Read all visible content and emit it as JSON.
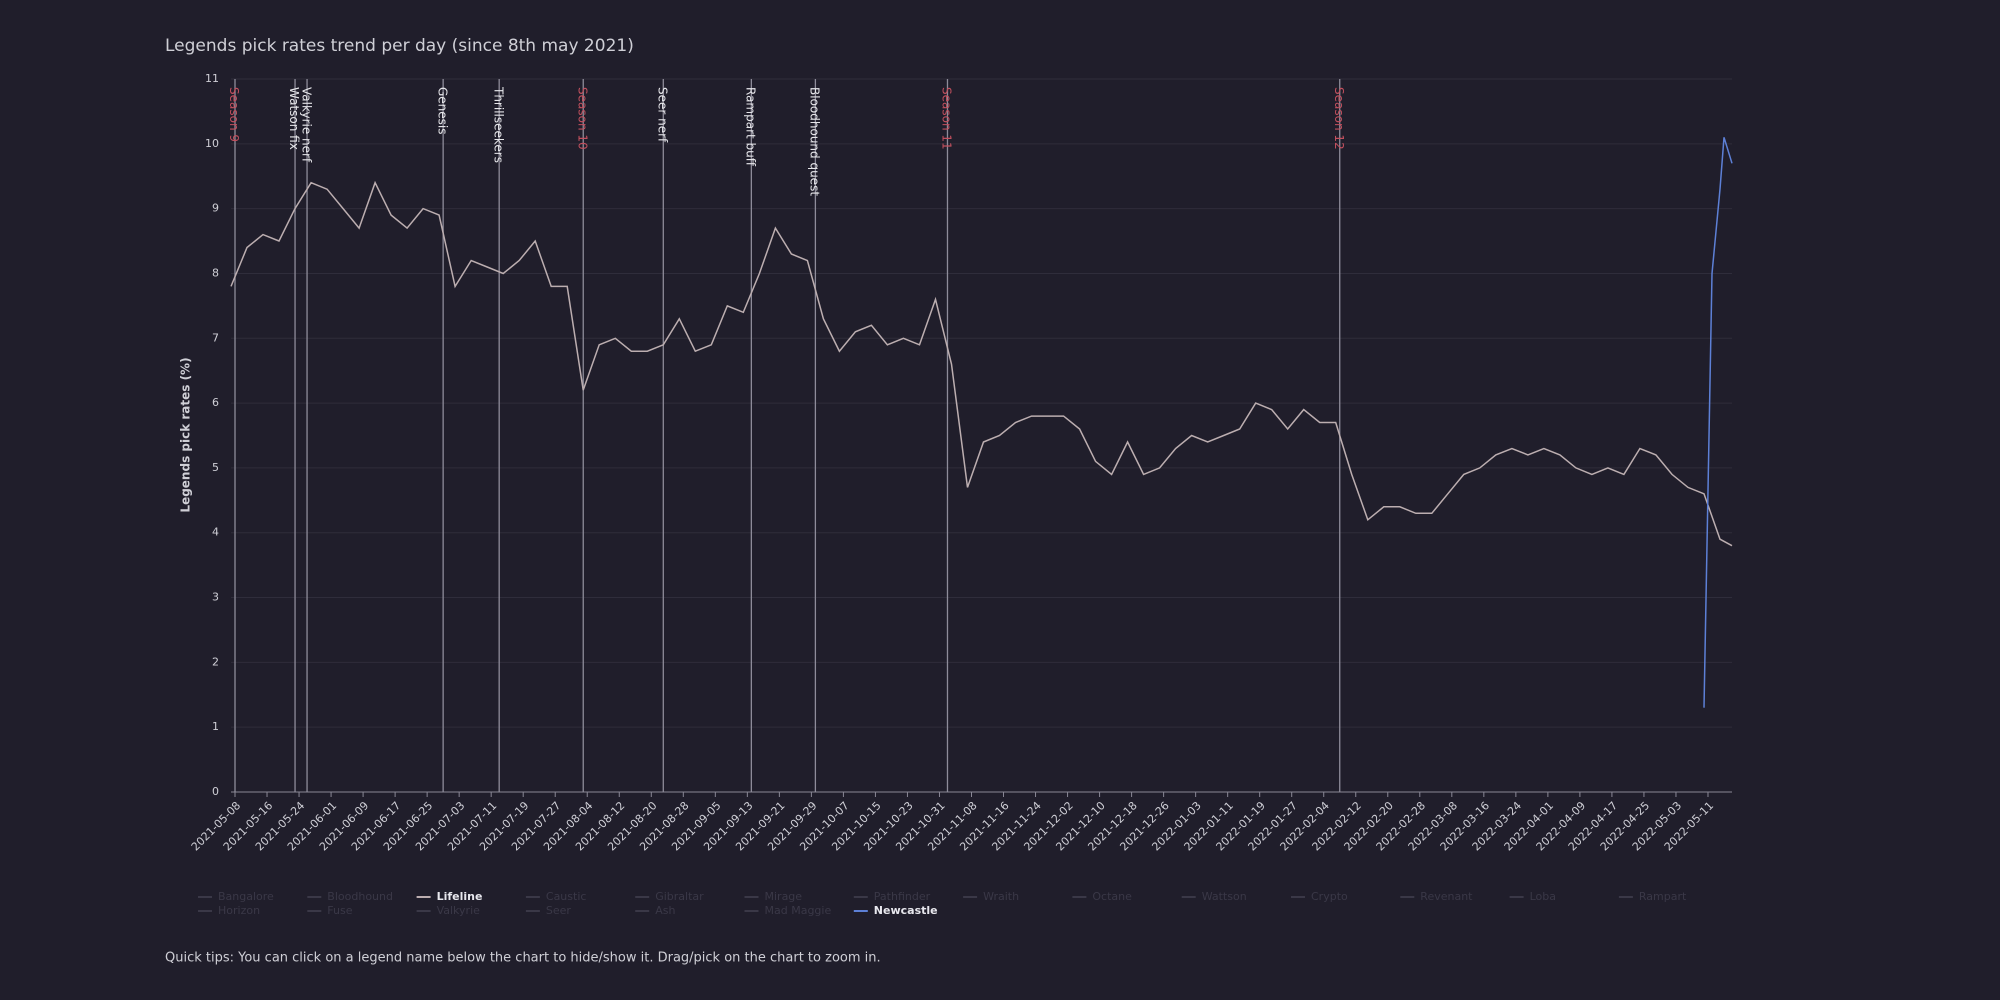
{
  "chart_data": {
    "type": "line",
    "title": "Legends pick rates trend per day (since 8th may 2021)",
    "y_label": "Legends pick rates (%)",
    "footnote": "Quick tips: You can click on a legend name below the chart to hide/show it. Drag/pick on the chart to zoom in.",
    "xlim": [
      "2021-05-07",
      "2022-05-17"
    ],
    "ylim": [
      0,
      11
    ],
    "yticks": [
      0,
      1,
      2,
      3,
      4,
      5,
      6,
      7,
      8,
      9,
      10,
      11
    ],
    "xticks": [
      "2021-05-08",
      "2021-05-16",
      "2021-05-24",
      "2021-06-01",
      "2021-06-09",
      "2021-06-17",
      "2021-06-25",
      "2021-07-03",
      "2021-07-11",
      "2021-07-19",
      "2021-07-27",
      "2021-08-04",
      "2021-08-12",
      "2021-08-20",
      "2021-08-28",
      "2021-09-05",
      "2021-09-13",
      "2021-09-21",
      "2021-09-29",
      "2021-10-07",
      "2021-10-15",
      "2021-10-23",
      "2021-10-31",
      "2021-11-08",
      "2021-11-16",
      "2021-11-24",
      "2021-12-02",
      "2021-12-10",
      "2021-12-18",
      "2021-12-26",
      "2022-01-03",
      "2022-01-11",
      "2022-01-19",
      "2022-01-27",
      "2022-02-04",
      "2022-02-12",
      "2022-02-20",
      "2022-02-28",
      "2022-03-08",
      "2022-03-16",
      "2022-03-24",
      "2022-04-01",
      "2022-04-09",
      "2022-04-17",
      "2022-04-25",
      "2022-05-03",
      "2022-05-11"
    ],
    "grid": true,
    "annotations": [
      {
        "label": "Season 9",
        "date": "2021-05-08",
        "color": "#c2505e"
      },
      {
        "label": "Watson fix",
        "date": "2021-05-23",
        "color": "#e6e6ea"
      },
      {
        "label": "Valkyrie nerf",
        "date": "2021-05-26",
        "color": "#e6e6ea"
      },
      {
        "label": "Genesis",
        "date": "2021-06-29",
        "color": "#e6e6ea"
      },
      {
        "label": "Thrillseekers",
        "date": "2021-07-13",
        "color": "#e6e6ea"
      },
      {
        "label": "Season 10",
        "date": "2021-08-03",
        "color": "#c2505e"
      },
      {
        "label": "Seer nerf",
        "date": "2021-08-23",
        "color": "#e6e6ea"
      },
      {
        "label": "Rampart buff",
        "date": "2021-09-14",
        "color": "#e6e6ea"
      },
      {
        "label": "Bloodhound quest",
        "date": "2021-09-30",
        "color": "#e6e6ea"
      },
      {
        "label": "Season 11",
        "date": "2021-11-02",
        "color": "#c2505e"
      },
      {
        "label": "Season 12",
        "date": "2022-02-08",
        "color": "#c2505e"
      }
    ],
    "series": [
      {
        "name": "Bangalore",
        "visible": false
      },
      {
        "name": "Bloodhound",
        "visible": false
      },
      {
        "name": "Lifeline",
        "visible": true,
        "color": "#bcaeb0",
        "x": [
          "2021-05-07",
          "2021-05-11",
          "2021-05-15",
          "2021-05-19",
          "2021-05-23",
          "2021-05-27",
          "2021-05-31",
          "2021-06-04",
          "2021-06-08",
          "2021-06-12",
          "2021-06-16",
          "2021-06-20",
          "2021-06-24",
          "2021-06-28",
          "2021-07-02",
          "2021-07-06",
          "2021-07-10",
          "2021-07-14",
          "2021-07-18",
          "2021-07-22",
          "2021-07-26",
          "2021-07-30",
          "2021-08-03",
          "2021-08-07",
          "2021-08-11",
          "2021-08-15",
          "2021-08-19",
          "2021-08-23",
          "2021-08-27",
          "2021-08-31",
          "2021-09-04",
          "2021-09-08",
          "2021-09-12",
          "2021-09-16",
          "2021-09-20",
          "2021-09-24",
          "2021-09-28",
          "2021-10-02",
          "2021-10-06",
          "2021-10-10",
          "2021-10-14",
          "2021-10-18",
          "2021-10-22",
          "2021-10-26",
          "2021-10-30",
          "2021-11-03",
          "2021-11-07",
          "2021-11-11",
          "2021-11-15",
          "2021-11-19",
          "2021-11-23",
          "2021-11-27",
          "2021-12-01",
          "2021-12-05",
          "2021-12-09",
          "2021-12-13",
          "2021-12-17",
          "2021-12-21",
          "2021-12-25",
          "2021-12-29",
          "2022-01-02",
          "2022-01-06",
          "2022-01-10",
          "2022-01-14",
          "2022-01-18",
          "2022-01-22",
          "2022-01-26",
          "2022-01-30",
          "2022-02-03",
          "2022-02-07",
          "2022-02-11",
          "2022-02-15",
          "2022-02-19",
          "2022-02-23",
          "2022-02-27",
          "2022-03-03",
          "2022-03-07",
          "2022-03-11",
          "2022-03-15",
          "2022-03-19",
          "2022-03-23",
          "2022-03-27",
          "2022-03-31",
          "2022-04-04",
          "2022-04-08",
          "2022-04-12",
          "2022-04-16",
          "2022-04-20",
          "2022-04-24",
          "2022-04-28",
          "2022-05-02",
          "2022-05-06",
          "2022-05-10",
          "2022-05-14",
          "2022-05-17"
        ],
        "values": [
          7.8,
          8.4,
          8.6,
          8.5,
          9.0,
          9.4,
          9.3,
          9.0,
          8.7,
          9.4,
          8.9,
          8.7,
          9.0,
          8.9,
          7.8,
          8.2,
          8.1,
          8.0,
          8.2,
          8.5,
          7.8,
          7.8,
          6.2,
          6.9,
          7.0,
          6.8,
          6.8,
          6.9,
          7.3,
          6.8,
          6.9,
          7.5,
          7.4,
          8.0,
          8.7,
          8.3,
          8.2,
          7.3,
          6.8,
          7.1,
          7.2,
          6.9,
          7.0,
          6.9,
          7.6,
          6.6,
          4.7,
          5.4,
          5.5,
          5.7,
          5.8,
          5.8,
          5.8,
          5.6,
          5.1,
          4.9,
          5.4,
          4.9,
          5.0,
          5.3,
          5.5,
          5.4,
          5.5,
          5.6,
          6.0,
          5.9,
          5.6,
          5.9,
          5.7,
          5.7,
          4.9,
          4.2,
          4.4,
          4.4,
          4.3,
          4.3,
          4.6,
          4.9,
          5.0,
          5.2,
          5.3,
          5.2,
          5.3,
          5.2,
          5.0,
          4.9,
          5.0,
          4.9,
          5.3,
          5.2,
          4.9,
          4.7,
          4.6,
          3.9,
          3.8
        ]
      },
      {
        "name": "Caustic",
        "visible": false
      },
      {
        "name": "Gibraltar",
        "visible": false
      },
      {
        "name": "Mirage",
        "visible": false
      },
      {
        "name": "Pathfinder",
        "visible": false
      },
      {
        "name": "Wraith",
        "visible": false
      },
      {
        "name": "Octane",
        "visible": false
      },
      {
        "name": "Wattson",
        "visible": false
      },
      {
        "name": "Crypto",
        "visible": false
      },
      {
        "name": "Revenant",
        "visible": false
      },
      {
        "name": "Loba",
        "visible": false
      },
      {
        "name": "Rampart",
        "visible": false
      },
      {
        "name": "Horizon",
        "visible": false
      },
      {
        "name": "Fuse",
        "visible": false
      },
      {
        "name": "Valkyrie",
        "visible": false
      },
      {
        "name": "Seer",
        "visible": false
      },
      {
        "name": "Ash",
        "visible": false
      },
      {
        "name": "Mad Maggie",
        "visible": false
      },
      {
        "name": "Newcastle",
        "visible": true,
        "color": "#5d80d6",
        "x": [
          "2022-05-10",
          "2022-05-12",
          "2022-05-14",
          "2022-05-15",
          "2022-05-17"
        ],
        "values": [
          1.3,
          8.0,
          9.3,
          10.1,
          9.7
        ]
      }
    ]
  }
}
